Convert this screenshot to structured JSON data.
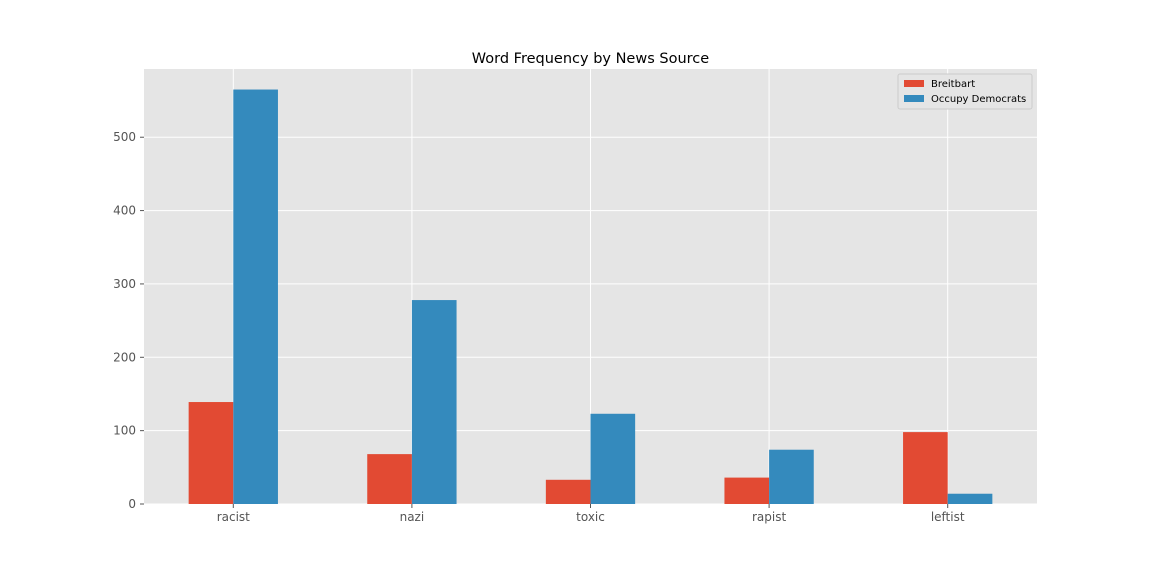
{
  "chart_data": {
    "type": "bar",
    "title": "Word Frequency by News Source",
    "xlabel": "",
    "ylabel": "",
    "categories": [
      "racist",
      "nazi",
      "toxic",
      "rapist",
      "leftist"
    ],
    "series": [
      {
        "name": "Breitbart",
        "values": [
          139,
          68,
          33,
          36,
          98
        ],
        "color": "#E24A33"
      },
      {
        "name": "Occupy Democrats",
        "values": [
          565,
          278,
          123,
          74,
          14
        ],
        "color": "#348ABD"
      }
    ],
    "ylim": [
      0,
      593
    ],
    "yticks": [
      0,
      100,
      200,
      300,
      400,
      500
    ],
    "grid": true,
    "legend_position": "top-right",
    "background": "#E5E5E5"
  }
}
